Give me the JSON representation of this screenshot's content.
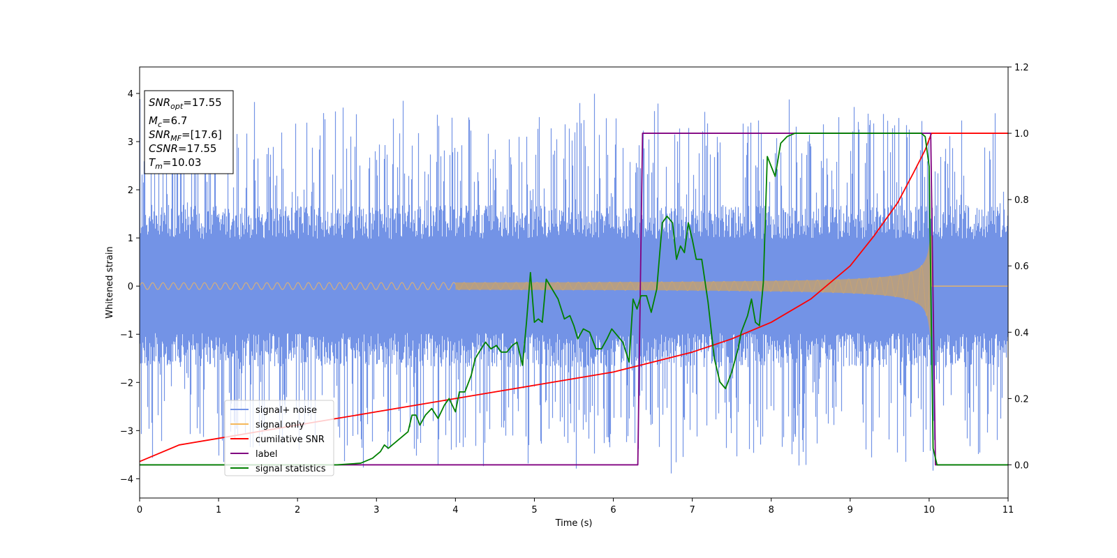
{
  "chart_data": {
    "type": "line",
    "xlabel": "Time (s)",
    "ylabel": "Whitened strain",
    "xlim": [
      0,
      11
    ],
    "ylim": [
      -4.4,
      4.55
    ],
    "ylim_right": [
      -0.1,
      1.2
    ],
    "x_ticks": [
      0,
      1,
      2,
      3,
      4,
      5,
      6,
      7,
      8,
      9,
      10,
      11
    ],
    "y_ticks": [
      -4,
      -3,
      -2,
      -1,
      0,
      1,
      2,
      3,
      4
    ],
    "y_ticks_right": [
      "0.0",
      "0.2",
      "0.4",
      "0.6",
      "0.8",
      "1.0",
      "1.2"
    ],
    "grid": false,
    "legend_position": "lower-left",
    "info_box": {
      "lines": [
        {
          "sym": "SNR",
          "sub": "opt",
          "value": "=17.55"
        },
        {
          "sym": "M",
          "sub": "c",
          "value": "=6.7"
        },
        {
          "sym": "SNR",
          "sub": "MF",
          "value": "=[17.6]"
        },
        {
          "sym": "CSNR",
          "sub": "",
          "value": "=17.55"
        },
        {
          "sym": "T",
          "sub": "m",
          "value": "=10.03"
        }
      ]
    },
    "series": [
      {
        "name": "signal+ noise",
        "color": "#7393e6",
        "axis": "left",
        "kind": "noise",
        "envelope_typical": 1.3,
        "envelope_peak": 4.15,
        "x_range": [
          0,
          11
        ]
      },
      {
        "name": "signal only",
        "color": "#f5b85a",
        "axis": "left",
        "kind": "chirp",
        "merger_time": 10.03,
        "amplitude_start": 0.07,
        "amplitude_merger": 1.05,
        "x_range": [
          0,
          11
        ]
      },
      {
        "name": "cumilative SNR",
        "color": "#ff0000",
        "axis": "right",
        "x": [
          0,
          0.5,
          1,
          1.5,
          2,
          2.5,
          3,
          3.5,
          4,
          4.5,
          5,
          5.5,
          6,
          6.5,
          7,
          7.5,
          8,
          8.5,
          9,
          9.3,
          9.6,
          9.8,
          9.95,
          10.03,
          10.5,
          11
        ],
        "y": [
          0.01,
          0.06,
          0.08,
          0.1,
          0.12,
          0.14,
          0.16,
          0.18,
          0.2,
          0.22,
          0.24,
          0.26,
          0.28,
          0.31,
          0.34,
          0.38,
          0.43,
          0.5,
          0.6,
          0.69,
          0.79,
          0.88,
          0.95,
          1.0,
          1.0,
          1.0
        ]
      },
      {
        "name": "label",
        "color": "#800080",
        "axis": "right",
        "x": [
          0,
          6.31,
          6.37,
          10.02,
          10.08,
          11
        ],
        "y": [
          0,
          0,
          1,
          1,
          0,
          0
        ]
      },
      {
        "name": "signal statistics",
        "color": "#008000",
        "axis": "right",
        "x": [
          0,
          1,
          2,
          2.5,
          2.8,
          2.95,
          3.05,
          3.1,
          3.15,
          3.2,
          3.3,
          3.4,
          3.45,
          3.5,
          3.55,
          3.62,
          3.7,
          3.78,
          3.86,
          3.92,
          4.0,
          4.05,
          4.12,
          4.2,
          4.25,
          4.3,
          4.38,
          4.45,
          4.52,
          4.58,
          4.65,
          4.72,
          4.78,
          4.85,
          4.9,
          4.95,
          5.0,
          5.05,
          5.1,
          5.15,
          5.2,
          5.25,
          5.3,
          5.38,
          5.45,
          5.5,
          5.55,
          5.62,
          5.7,
          5.78,
          5.85,
          5.92,
          5.98,
          6.05,
          6.12,
          6.2,
          6.25,
          6.3,
          6.35,
          6.42,
          6.48,
          6.55,
          6.62,
          6.68,
          6.75,
          6.8,
          6.85,
          6.9,
          6.95,
          7.0,
          7.05,
          7.12,
          7.2,
          7.28,
          7.35,
          7.42,
          7.5,
          7.58,
          7.62,
          7.7,
          7.75,
          7.8,
          7.85,
          7.9,
          7.95,
          8.0,
          8.05,
          8.12,
          8.2,
          8.3,
          8.5,
          9.0,
          9.5,
          9.8,
          9.9,
          9.95,
          10.0,
          10.05,
          10.1,
          11.0
        ],
        "y": [
          0,
          0,
          0.0,
          0.0,
          0.005,
          0.02,
          0.04,
          0.06,
          0.05,
          0.06,
          0.08,
          0.1,
          0.15,
          0.15,
          0.12,
          0.15,
          0.17,
          0.14,
          0.18,
          0.2,
          0.16,
          0.22,
          0.22,
          0.27,
          0.32,
          0.34,
          0.37,
          0.35,
          0.36,
          0.34,
          0.34,
          0.36,
          0.37,
          0.3,
          0.43,
          0.58,
          0.43,
          0.44,
          0.43,
          0.56,
          0.54,
          0.52,
          0.5,
          0.44,
          0.45,
          0.42,
          0.38,
          0.41,
          0.4,
          0.35,
          0.35,
          0.38,
          0.41,
          0.39,
          0.37,
          0.31,
          0.5,
          0.47,
          0.51,
          0.51,
          0.46,
          0.53,
          0.73,
          0.75,
          0.73,
          0.62,
          0.66,
          0.64,
          0.73,
          0.68,
          0.62,
          0.62,
          0.49,
          0.32,
          0.25,
          0.23,
          0.28,
          0.35,
          0.4,
          0.45,
          0.5,
          0.43,
          0.42,
          0.55,
          0.93,
          0.9,
          0.87,
          0.97,
          0.99,
          1.0,
          1.0,
          1.0,
          1.0,
          1.0,
          1.0,
          0.99,
          0.9,
          0.05,
          0.0,
          0.0
        ]
      }
    ]
  }
}
